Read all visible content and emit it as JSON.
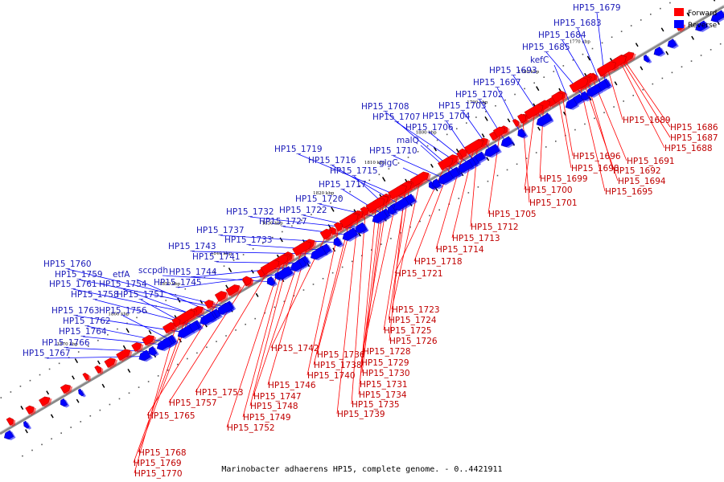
{
  "caption": "Marinobacter adhaerens HP15, complete genome. - 0..4421911",
  "legend": [
    {
      "label": "Forward",
      "color": "#ff0000"
    },
    {
      "label": "Reverse",
      "color": "#0000ff"
    }
  ],
  "colors": {
    "forward": "#ff0000",
    "reverse": "#0000ff",
    "backbone": "#888888",
    "connector_fwd": "#ff0000",
    "connector_rev": "#0000ff"
  },
  "ticks": [
    "1870 kbp",
    "1860 kbp",
    "1850 kbp",
    "1840 kbp",
    "1830 kbp",
    "1820 kbp",
    "1810 kbp",
    "1800 kbp",
    "1790 kbp",
    "1780 kbp",
    "1770 kbp"
  ],
  "forward_genes": [
    "HP15_1686",
    "HP15_1687",
    "HP15_1688",
    "HP15_1689",
    "HP15_1691",
    "HP15_1692",
    "HP15_1694",
    "HP15_1695",
    "HP15_1696",
    "HP15_1698",
    "HP15_1699",
    "HP15_1700",
    "HP15_1701",
    "HP15_1705",
    "HP15_1712",
    "HP15_1713",
    "HP15_1714",
    "HP15_1718",
    "HP15_1721",
    "HP15_1723",
    "HP15_1724",
    "HP15_1725",
    "HP15_1726",
    "HP15_1728",
    "HP15_1729",
    "HP15_1730",
    "HP15_1731",
    "HP15_1734",
    "HP15_1735",
    "HP15_1739",
    "HP15_1736",
    "HP15_1738",
    "HP15_1740",
    "HP15_1742",
    "HP15_1746",
    "HP15_1747",
    "HP15_1748",
    "HP15_1749",
    "HP15_1752",
    "HP15_1753",
    "HP15_1757",
    "HP15_1765",
    "HP15_1768",
    "HP15_1769",
    "HP15_1770"
  ],
  "reverse_genes": [
    "HP15_1679",
    "HP15_1683",
    "HP15_1684",
    "HP15_1685",
    "kefC",
    "HP15_1693",
    "HP15_1697",
    "HP15_1702",
    "HP15_1703",
    "HP15_1704",
    "HP15_1706",
    "HP15_1707",
    "HP15_1708",
    "malQ",
    "HP15_1710",
    "glgC",
    "HP15_1719",
    "HP15_1716",
    "HP15_1715",
    "HP15_1717",
    "HP15_1720",
    "HP15_1722",
    "HP15_1732",
    "HP15_1727",
    "HP15_1737",
    "HP15_1733",
    "HP15_1743",
    "HP15_1741",
    "HP15_1744",
    "HP15_1745",
    "sccpdh",
    "HP15_1760",
    "HP15_1759",
    "etfA",
    "HP15_1761",
    "HP15_1754",
    "HP15_1758",
    "HP15_1751",
    "HP15_1763",
    "HP15_1756",
    "HP15_1762",
    "HP15_1764",
    "HP15_1766",
    "HP15_1767"
  ]
}
